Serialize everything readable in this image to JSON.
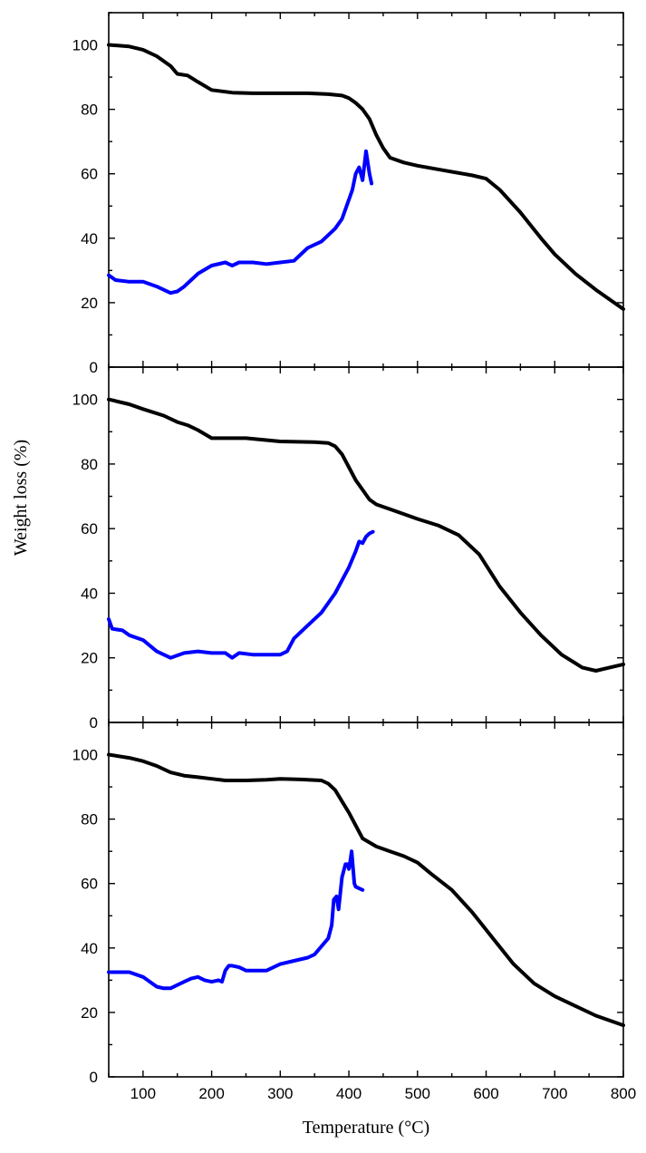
{
  "chart_data": {
    "type": "line",
    "xlabel": "Temperature (°C)",
    "ylabel": "Weight loss (%)",
    "xlim": [
      50,
      800
    ],
    "ylim": [
      0,
      110
    ],
    "xticks": [
      100,
      200,
      300,
      400,
      500,
      600,
      700,
      800
    ],
    "yticks": [
      0,
      20,
      40,
      60,
      80,
      100
    ],
    "colors": {
      "black_series": "#000000",
      "blue_series": "#0000ff"
    },
    "panels": [
      {
        "series": [
          {
            "color": "#000000",
            "x": [
              50,
              80,
              100,
              120,
              140,
              150,
              165,
              180,
              200,
              230,
              260,
              300,
              340,
              370,
              390,
              400,
              410,
              420,
              430,
              440,
              450,
              460,
              480,
              500,
              540,
              580,
              600,
              620,
              650,
              680,
              700,
              730,
              760,
              800
            ],
            "y": [
              100,
              99.5,
              98.5,
              96.5,
              93.5,
              91,
              90.5,
              88.5,
              86,
              85.2,
              85,
              85,
              85,
              84.7,
              84.3,
              83.5,
              82,
              80,
              77,
              72,
              68,
              65,
              63.5,
              62.5,
              61,
              59.5,
              58.5,
              55,
              48,
              40,
              35,
              29,
              24,
              18
            ]
          },
          {
            "color": "#0000ff",
            "x": [
              50,
              60,
              80,
              100,
              120,
              140,
              150,
              160,
              170,
              180,
              200,
              220,
              230,
              240,
              260,
              280,
              300,
              320,
              340,
              360,
              380,
              390,
              395,
              400,
              405,
              410,
              415,
              420,
              425,
              430,
              433
            ],
            "y": [
              28.5,
              27,
              26.5,
              26.5,
              25,
              23,
              23.5,
              25,
              27,
              29,
              31.5,
              32.5,
              31.5,
              32.5,
              32.5,
              32,
              32.5,
              33,
              37,
              39,
              43,
              46,
              49,
              52,
              55,
              60,
              62,
              58,
              67,
              60,
              57
            ]
          }
        ]
      },
      {
        "series": [
          {
            "color": "#000000",
            "x": [
              50,
              80,
              100,
              130,
              150,
              165,
              180,
              200,
              250,
              300,
              350,
              370,
              380,
              390,
              400,
              410,
              420,
              430,
              440,
              460,
              480,
              500,
              530,
              560,
              590,
              620,
              650,
              680,
              710,
              740,
              760,
              780,
              800
            ],
            "y": [
              100,
              98.5,
              97,
              95,
              93,
              92,
              90.5,
              88,
              88,
              87,
              86.8,
              86.5,
              85.5,
              83,
              79,
              75,
              72,
              69,
              67.5,
              66,
              64.5,
              63,
              61,
              58,
              52,
              42,
              34,
              27,
              21,
              17,
              16,
              17,
              18
            ]
          },
          {
            "color": "#0000ff",
            "x": [
              50,
              55,
              70,
              80,
              100,
              120,
              140,
              160,
              180,
              200,
              220,
              230,
              240,
              260,
              280,
              300,
              310,
              320,
              340,
              360,
              380,
              400,
              410,
              415,
              420,
              425,
              430,
              435
            ],
            "y": [
              32,
              29,
              28.5,
              27,
              25.5,
              22,
              20,
              21.5,
              22,
              21.5,
              21.5,
              20,
              21.5,
              21,
              21,
              21,
              22,
              26,
              30,
              34,
              40,
              48,
              53,
              56,
              55.5,
              57.5,
              58.5,
              59
            ]
          }
        ]
      },
      {
        "series": [
          {
            "color": "#000000",
            "x": [
              50,
              80,
              100,
              120,
              140,
              160,
              180,
              200,
              220,
              250,
              280,
              300,
              330,
              360,
              370,
              380,
              390,
              400,
              410,
              420,
              440,
              460,
              480,
              500,
              520,
              550,
              580,
              610,
              640,
              670,
              700,
              730,
              760,
              800
            ],
            "y": [
              100,
              99,
              98,
              96.5,
              94.5,
              93.5,
              93,
              92.5,
              92,
              92,
              92.2,
              92.5,
              92.3,
              92,
              91,
              89,
              85.5,
              82,
              78,
              74,
              71.5,
              70,
              68.5,
              66.5,
              63,
              58,
              51,
              43,
              35,
              29,
              25,
              22,
              19,
              16
            ]
          },
          {
            "color": "#0000ff",
            "x": [
              50,
              60,
              80,
              100,
              110,
              120,
              130,
              140,
              150,
              160,
              170,
              180,
              190,
              200,
              210,
              215,
              220,
              225,
              230,
              240,
              250,
              270,
              280,
              300,
              320,
              340,
              350,
              360,
              370,
              375,
              378,
              382,
              385,
              390,
              395,
              398,
              400,
              402,
              404,
              406,
              408,
              410,
              415,
              420
            ],
            "y": [
              32.5,
              32.5,
              32.5,
              31,
              29.5,
              28,
              27.5,
              27.5,
              28.5,
              29.5,
              30.5,
              31,
              30,
              29.5,
              30,
              29.5,
              33,
              34.5,
              34.5,
              34,
              33,
              33,
              33,
              35,
              36,
              37,
              38,
              40.5,
              43,
              47,
              55,
              56,
              52,
              62,
              66,
              66,
              64.5,
              67,
              70,
              65,
              60,
              59,
              58.5,
              58
            ]
          }
        ]
      }
    ]
  },
  "labels": {
    "xlabel": "Temperature (°C)",
    "ylabel": "Weight loss (%)"
  }
}
